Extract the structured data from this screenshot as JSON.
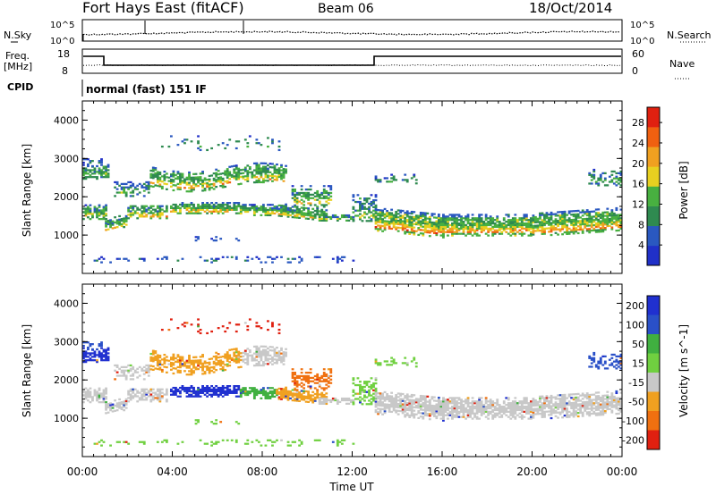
{
  "header": {
    "title": "Fort Hays East (fitACF)",
    "beam": "Beam 06",
    "date": "18/Oct/2014"
  },
  "noise_panel": {
    "left_label": "N.Sky",
    "right_label": "N.Search",
    "left_ticks": [
      "10^5",
      "10^0"
    ],
    "right_ticks": [
      "10^5",
      "10^0"
    ]
  },
  "freq_panel": {
    "left_label": "Freq.",
    "left_unit": "[MHz]",
    "right_label": "Nave",
    "left_ticks": [
      "18",
      "8"
    ],
    "right_ticks": [
      "60",
      "0"
    ],
    "cpid_label": "CPID",
    "cpid_text": "normal (fast) 151 IF"
  },
  "colors": {
    "power": [
      "#2030c8",
      "#2a58c0",
      "#2f8a50",
      "#48b040",
      "#e8d020",
      "#f0a020",
      "#f06010",
      "#e02010"
    ],
    "velocity": [
      "#2030d0",
      "#2a50c8",
      "#40b040",
      "#70d040",
      "#c8c8c8",
      "#f0a020",
      "#f07010",
      "#e02010"
    ]
  },
  "chart_data": [
    {
      "type": "heatmap",
      "name": "power",
      "ylabel": "Slant Range [km]",
      "ylim": [
        0,
        4500
      ],
      "y_ticks": [
        "1000",
        "2000",
        "3000",
        "4000"
      ],
      "y_tick_values": [
        1000,
        2000,
        3000,
        4000
      ],
      "colorbar_label": "Power [dB]",
      "colorbar_ticks": [
        "4",
        "8",
        "12",
        "16",
        "20",
        "24",
        "28"
      ],
      "colorbar_range": [
        0,
        31
      ]
    },
    {
      "type": "heatmap",
      "name": "velocity",
      "ylabel": "Slant Range [km]",
      "xlabel": "Time UT",
      "ylim": [
        0,
        4500
      ],
      "y_ticks": [
        "1000",
        "2000",
        "3000",
        "4000"
      ],
      "y_tick_values": [
        1000,
        2000,
        3000,
        4000
      ],
      "x_ticks": [
        "00:00",
        "04:00",
        "08:00",
        "12:00",
        "16:00",
        "20:00",
        "00:00"
      ],
      "x_tick_values": [
        0,
        4,
        8,
        12,
        16,
        20,
        24
      ],
      "colorbar_label": "Velocity [m s^-1]",
      "colorbar_ticks": [
        "200",
        "100",
        "50",
        "15",
        "-15",
        "-50",
        "-100",
        "-200"
      ]
    }
  ]
}
